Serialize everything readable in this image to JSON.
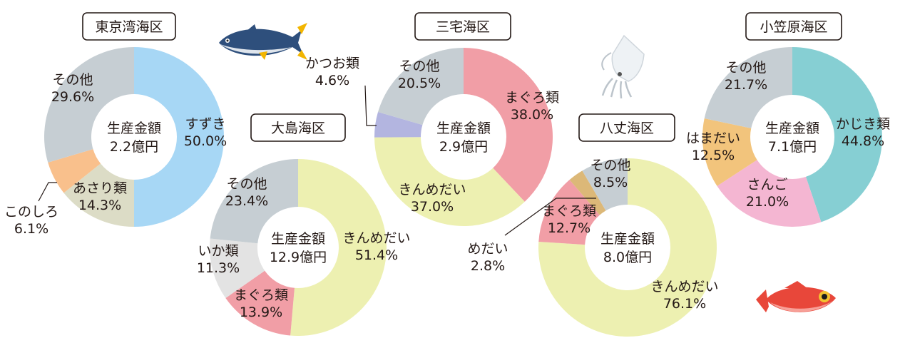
{
  "chart_data": [
    {
      "type": "pie",
      "title": "東京湾海区",
      "center_label": "生産金額",
      "total": "2.2億円",
      "slices": [
        {
          "name": "すずき",
          "value": 50.0,
          "pct_label": "50.0%",
          "color": "#a7d7f5"
        },
        {
          "name": "あさり類",
          "value": 14.3,
          "pct_label": "14.3%",
          "color": "#dcdcc6"
        },
        {
          "name": "このしろ",
          "value": 6.1,
          "pct_label": "6.1%",
          "color": "#f9c08c"
        },
        {
          "name": "その他",
          "value": 29.6,
          "pct_label": "29.6%",
          "color": "#c6ced3"
        }
      ]
    },
    {
      "type": "pie",
      "title": "大島海区",
      "center_label": "生産金額",
      "total": "12.9億円",
      "slices": [
        {
          "name": "きんめだい",
          "value": 51.4,
          "pct_label": "51.4%",
          "color": "#edf0b1"
        },
        {
          "name": "まぐろ類",
          "value": 13.9,
          "pct_label": "13.9%",
          "color": "#f19ea6"
        },
        {
          "name": "いか類",
          "value": 11.3,
          "pct_label": "11.3%",
          "color": "#e3e3e3"
        },
        {
          "name": "その他",
          "value": 23.4,
          "pct_label": "23.4%",
          "color": "#c6ced3"
        }
      ]
    },
    {
      "type": "pie",
      "title": "三宅海区",
      "center_label": "生産金額",
      "total": "2.9億円",
      "slices": [
        {
          "name": "まぐろ類",
          "value": 38.0,
          "pct_label": "38.0%",
          "color": "#f19ea6"
        },
        {
          "name": "きんめだい",
          "value": 37.0,
          "pct_label": "37.0%",
          "color": "#edf0b1"
        },
        {
          "name": "かつお類",
          "value": 4.6,
          "pct_label": "4.6%",
          "color": "#b3b5e0"
        },
        {
          "name": "その他",
          "value": 20.5,
          "pct_label": "20.5%",
          "color": "#c6ced3"
        }
      ]
    },
    {
      "type": "pie",
      "title": "八丈海区",
      "center_label": "生産金額",
      "total": "8.0億円",
      "slices": [
        {
          "name": "きんめだい",
          "value": 76.1,
          "pct_label": "76.1%",
          "color": "#edf0b1"
        },
        {
          "name": "まぐろ類",
          "value": 12.7,
          "pct_label": "12.7%",
          "color": "#f19ea6"
        },
        {
          "name": "めだい",
          "value": 2.8,
          "pct_label": "2.8%",
          "color": "#dcb878"
        },
        {
          "name": "その他",
          "value": 8.5,
          "pct_label": "8.5%",
          "color": "#c6ced3"
        }
      ]
    },
    {
      "type": "pie",
      "title": "小笠原海区",
      "center_label": "生産金額",
      "total": "7.1億円",
      "slices": [
        {
          "name": "かじき類",
          "value": 44.8,
          "pct_label": "44.8%",
          "color": "#86cfd3"
        },
        {
          "name": "さんご",
          "value": 21.0,
          "pct_label": "21.0%",
          "color": "#f4b6d2"
        },
        {
          "name": "はまだい",
          "value": 12.5,
          "pct_label": "12.5%",
          "color": "#f2c47c"
        },
        {
          "name": "その他",
          "value": 21.7,
          "pct_label": "21.7%",
          "color": "#c6ced3"
        }
      ]
    }
  ],
  "illustrations": [
    "tuna-icon",
    "squid-icon",
    "alfonsino-fish-icon"
  ]
}
